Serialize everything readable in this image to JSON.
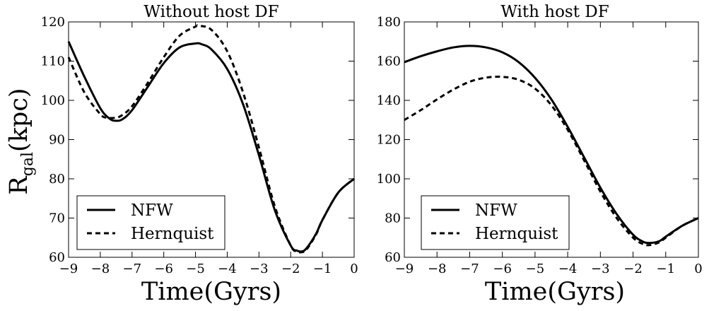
{
  "figure": {
    "ylabel_main": "R",
    "ylabel_sub": "gal",
    "ylabel_unit": "(kpc)"
  },
  "chart_data": [
    {
      "type": "line",
      "title": "Without host DF",
      "xlabel": "Time(Gyrs)",
      "ylabel": "R_gal(kpc)",
      "xlim": [
        -9,
        0
      ],
      "ylim": [
        60,
        120
      ],
      "xticks": [
        "−9",
        "−8",
        "−7",
        "−6",
        "−5",
        "−4",
        "−3",
        "−2",
        "−1",
        "0"
      ],
      "yticks": [
        "60",
        "70",
        "80",
        "90",
        "100",
        "110",
        "120"
      ],
      "legend": "bottom-left",
      "grid": false,
      "series": [
        {
          "name": "NFW",
          "style": "solid",
          "color": "#000000",
          "x": [
            -9,
            -8.5,
            -8,
            -7.7,
            -7.5,
            -7.3,
            -7,
            -6.5,
            -6,
            -5.5,
            -5,
            -4.8,
            -4.5,
            -4,
            -3.5,
            -3,
            -2.5,
            -2,
            -1.8,
            -1.65,
            -1.5,
            -1.2,
            -1,
            -0.5,
            0
          ],
          "y": [
            115,
            106,
            98,
            95.3,
            94.8,
            95.2,
            97.5,
            103.5,
            109.5,
            113.5,
            114.5,
            114.3,
            113,
            108,
            99,
            86,
            72,
            63,
            61.7,
            61.5,
            62.3,
            66,
            69.5,
            76.5,
            80
          ]
        },
        {
          "name": "Hernquist",
          "style": "dashed",
          "color": "#000000",
          "x": [
            -9,
            -8.5,
            -8,
            -7.8,
            -7.5,
            -7.3,
            -7,
            -6.5,
            -6,
            -5.5,
            -5,
            -4.9,
            -4.5,
            -4,
            -3.5,
            -3,
            -2.5,
            -2,
            -1.8,
            -1.65,
            -1.5,
            -1.2,
            -1,
            -0.5,
            0
          ],
          "y": [
            111,
            102,
            96.5,
            95.6,
            95.6,
            96.3,
            98.5,
            104.5,
            111,
            116.5,
            118.8,
            119,
            118,
            112.5,
            102,
            88,
            73,
            63,
            61.5,
            61.3,
            62,
            65.8,
            69.5,
            76.5,
            80
          ]
        }
      ]
    },
    {
      "type": "line",
      "title": "With host DF",
      "xlabel": "Time(Gyrs)",
      "ylabel": "",
      "xlim": [
        -9,
        0
      ],
      "ylim": [
        60,
        180
      ],
      "xticks": [
        "−9",
        "−8",
        "−7",
        "−6",
        "−5",
        "−4",
        "−3",
        "−2",
        "−1",
        "0"
      ],
      "yticks": [
        "60",
        "80",
        "100",
        "120",
        "140",
        "160",
        "180"
      ],
      "legend": "bottom-left",
      "grid": false,
      "series": [
        {
          "name": "NFW",
          "style": "solid",
          "color": "#000000",
          "x": [
            -9,
            -8.5,
            -8,
            -7.5,
            -7,
            -6.5,
            -6,
            -5.5,
            -5,
            -4.5,
            -4,
            -3.5,
            -3,
            -2.5,
            -2,
            -1.7,
            -1.5,
            -1.2,
            -1,
            -0.5,
            0
          ],
          "y": [
            159.5,
            162.5,
            165,
            167,
            167.8,
            167,
            164.5,
            159.5,
            151.5,
            140.5,
            126.5,
            111,
            95.5,
            82,
            71.5,
            68,
            67.3,
            68.2,
            70.5,
            76,
            80
          ]
        },
        {
          "name": "Hernquist",
          "style": "dashed",
          "color": "#000000",
          "x": [
            -9,
            -8.5,
            -8,
            -7.5,
            -7,
            -6.5,
            -6,
            -5.5,
            -5,
            -4.5,
            -4,
            -3.5,
            -3,
            -2.5,
            -2,
            -1.7,
            -1.5,
            -1.2,
            -1,
            -0.5,
            0
          ],
          "y": [
            130,
            135,
            140.5,
            145.5,
            149.5,
            151.6,
            152,
            150.5,
            146,
            137.5,
            125,
            109.5,
            93.5,
            80,
            70,
            66.8,
            66.2,
            67.6,
            70,
            76,
            80
          ]
        }
      ]
    }
  ]
}
